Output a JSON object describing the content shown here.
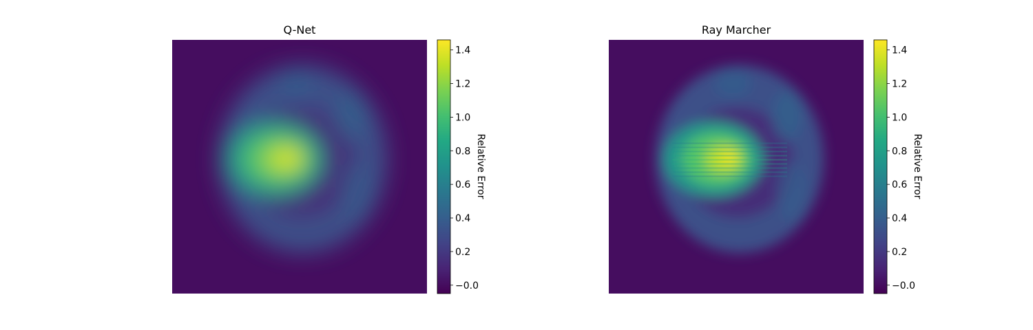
{
  "chart_data": [
    {
      "type": "heatmap",
      "title": "Q-Net",
      "colormap": "viridis",
      "axes_visible": false,
      "grid": false,
      "colorbar": {
        "label": "Relative Error",
        "range": [
          -0.05,
          1.46
        ],
        "ticks": [
          -0.0,
          0.2,
          0.4,
          0.6,
          0.8,
          1.0,
          1.2,
          1.4
        ],
        "tick_labels": [
          "−0.0",
          "0.2",
          "0.4",
          "0.6",
          "0.8",
          "1.0",
          "1.2",
          "1.4"
        ]
      },
      "peak_value": 1.45,
      "background_value": 0.0
    },
    {
      "type": "heatmap",
      "title": "Ray Marcher",
      "colormap": "viridis",
      "axes_visible": false,
      "grid": false,
      "colorbar": {
        "label": "Relative Error",
        "range": [
          -0.05,
          1.46
        ],
        "ticks": [
          -0.0,
          0.2,
          0.4,
          0.6,
          0.8,
          1.0,
          1.2,
          1.4
        ],
        "tick_labels": [
          "−0.0",
          "0.2",
          "0.4",
          "0.6",
          "0.8",
          "1.0",
          "1.2",
          "1.4"
        ]
      },
      "peak_value": 1.45,
      "background_value": 0.0
    }
  ]
}
